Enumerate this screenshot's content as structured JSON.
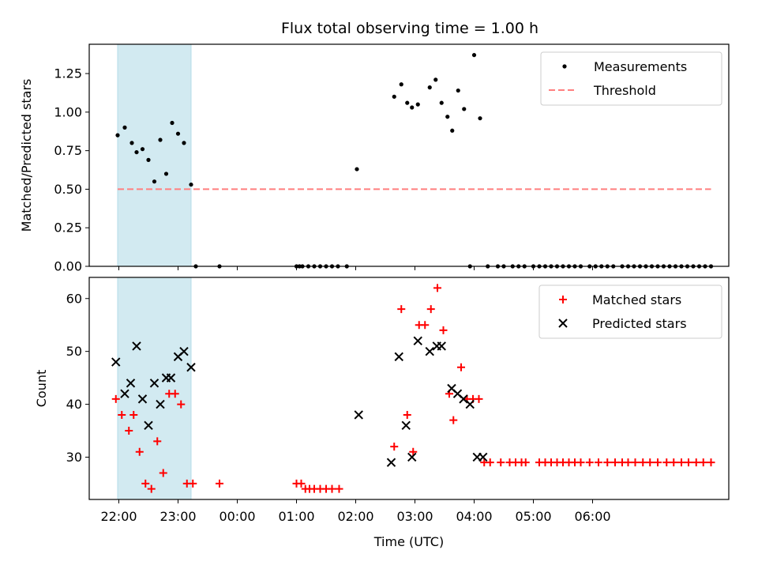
{
  "chart_data": [
    {
      "type": "scatter",
      "title": "Flux total observing time = 1.00 h",
      "xlabel": "",
      "ylabel": "Matched/Predicted stars",
      "ylim": [
        0,
        1.44
      ],
      "yticks": [
        "0.00",
        "0.25",
        "0.50",
        "0.75",
        "1.00",
        "1.25"
      ],
      "xlim": [
        -2.5,
        8.3
      ],
      "grid": false,
      "legend_position": "upper-right",
      "shaded_span": {
        "start": -2.02,
        "end": -0.78,
        "color": "#add8e6"
      },
      "series": [
        {
          "name": "Measurements",
          "kind": "scatter",
          "color": "#000000",
          "points": [
            [
              -2.02,
              0.85
            ],
            [
              -1.9,
              0.9
            ],
            [
              -1.78,
              0.8
            ],
            [
              -1.7,
              0.74
            ],
            [
              -1.6,
              0.76
            ],
            [
              -1.5,
              0.69
            ],
            [
              -1.4,
              0.55
            ],
            [
              -1.3,
              0.82
            ],
            [
              -1.2,
              0.6
            ],
            [
              -1.1,
              0.93
            ],
            [
              -1.0,
              0.86
            ],
            [
              -0.9,
              0.8
            ],
            [
              -0.78,
              0.53
            ],
            [
              -0.7,
              0.0
            ],
            [
              -0.3,
              0.0
            ],
            [
              1.0,
              0.0
            ],
            [
              1.05,
              0.0
            ],
            [
              1.1,
              0.0
            ],
            [
              1.2,
              0.0
            ],
            [
              1.3,
              0.0
            ],
            [
              1.4,
              0.0
            ],
            [
              1.5,
              0.0
            ],
            [
              1.6,
              0.0
            ],
            [
              1.7,
              0.0
            ],
            [
              1.85,
              0.0
            ],
            [
              2.02,
              0.63
            ],
            [
              2.65,
              1.1
            ],
            [
              2.77,
              1.18
            ],
            [
              2.87,
              1.06
            ],
            [
              2.95,
              1.03
            ],
            [
              3.05,
              1.05
            ],
            [
              3.25,
              1.16
            ],
            [
              3.35,
              1.21
            ],
            [
              3.45,
              1.06
            ],
            [
              3.55,
              0.97
            ],
            [
              3.63,
              0.88
            ],
            [
              3.73,
              1.14
            ],
            [
              3.83,
              1.02
            ],
            [
              3.93,
              0.0
            ],
            [
              4.0,
              1.37
            ],
            [
              4.1,
              0.96
            ],
            [
              4.23,
              0.0
            ],
            [
              4.4,
              0.0
            ],
            [
              4.5,
              0.0
            ],
            [
              4.65,
              0.0
            ],
            [
              4.75,
              0.0
            ],
            [
              4.85,
              0.0
            ],
            [
              5.0,
              0.0
            ],
            [
              5.1,
              0.0
            ],
            [
              5.2,
              0.0
            ],
            [
              5.3,
              0.0
            ],
            [
              5.4,
              0.0
            ],
            [
              5.5,
              0.0
            ],
            [
              5.6,
              0.0
            ],
            [
              5.7,
              0.0
            ],
            [
              5.8,
              0.0
            ],
            [
              5.95,
              0.0
            ],
            [
              6.05,
              0.0
            ],
            [
              6.15,
              0.0
            ],
            [
              6.25,
              0.0
            ],
            [
              6.35,
              0.0
            ],
            [
              6.5,
              0.0
            ],
            [
              6.6,
              0.0
            ],
            [
              6.7,
              0.0
            ],
            [
              6.8,
              0.0
            ],
            [
              6.9,
              0.0
            ],
            [
              7.0,
              0.0
            ],
            [
              7.1,
              0.0
            ],
            [
              7.2,
              0.0
            ],
            [
              7.3,
              0.0
            ],
            [
              7.4,
              0.0
            ],
            [
              7.5,
              0.0
            ],
            [
              7.6,
              0.0
            ],
            [
              7.7,
              0.0
            ],
            [
              7.8,
              0.0
            ],
            [
              7.9,
              0.0
            ],
            [
              8.0,
              0.0
            ]
          ]
        },
        {
          "name": "Threshold",
          "kind": "line",
          "color": "#ff7f7f",
          "dashed": true,
          "x": [
            -2.02,
            8.0
          ],
          "y": [
            0.5,
            0.5
          ]
        }
      ]
    },
    {
      "type": "scatter",
      "title": "",
      "xlabel": "Time (UTC)",
      "ylabel": "Count",
      "ylim": [
        22,
        64
      ],
      "yticks": [
        "30",
        "40",
        "50",
        "60"
      ],
      "xlim": [
        -2.5,
        8.3
      ],
      "xticks": [
        "22:00",
        "23:00",
        "00:00",
        "01:00",
        "02:00",
        "03:00",
        "04:00",
        "05:00",
        "06:00"
      ],
      "grid": false,
      "legend_position": "upper-right",
      "shaded_span": {
        "start": -2.02,
        "end": -0.78,
        "color": "#add8e6"
      },
      "series": [
        {
          "name": "Matched stars",
          "marker": "plus",
          "color": "#ff0000",
          "points": [
            [
              -2.05,
              41
            ],
            [
              -1.95,
              38
            ],
            [
              -1.83,
              35
            ],
            [
              -1.75,
              38
            ],
            [
              -1.65,
              31
            ],
            [
              -1.55,
              25
            ],
            [
              -1.45,
              24
            ],
            [
              -1.35,
              33
            ],
            [
              -1.25,
              27
            ],
            [
              -1.15,
              42
            ],
            [
              -1.05,
              42
            ],
            [
              -0.95,
              40
            ],
            [
              -0.85,
              25
            ],
            [
              -0.75,
              25
            ],
            [
              -0.3,
              25
            ],
            [
              1.0,
              25
            ],
            [
              1.08,
              25
            ],
            [
              1.15,
              24
            ],
            [
              1.22,
              24
            ],
            [
              1.3,
              24
            ],
            [
              1.4,
              24
            ],
            [
              1.5,
              24
            ],
            [
              1.6,
              24
            ],
            [
              1.72,
              24
            ],
            [
              2.65,
              32
            ],
            [
              2.77,
              58
            ],
            [
              2.87,
              38
            ],
            [
              2.97,
              31
            ],
            [
              3.07,
              55
            ],
            [
              3.17,
              55
            ],
            [
              3.27,
              58
            ],
            [
              3.38,
              62
            ],
            [
              3.48,
              54
            ],
            [
              3.58,
              42
            ],
            [
              3.65,
              37
            ],
            [
              3.78,
              47
            ],
            [
              3.88,
              41
            ],
            [
              3.98,
              41
            ],
            [
              4.08,
              41
            ],
            [
              4.17,
              29
            ],
            [
              4.27,
              29
            ],
            [
              4.45,
              29
            ],
            [
              4.6,
              29
            ],
            [
              4.7,
              29
            ],
            [
              4.8,
              29
            ],
            [
              4.87,
              29
            ],
            [
              5.1,
              29
            ],
            [
              5.2,
              29
            ],
            [
              5.3,
              29
            ],
            [
              5.4,
              29
            ],
            [
              5.5,
              29
            ],
            [
              5.6,
              29
            ],
            [
              5.7,
              29
            ],
            [
              5.8,
              29
            ],
            [
              5.95,
              29
            ],
            [
              6.1,
              29
            ],
            [
              6.25,
              29
            ],
            [
              6.38,
              29
            ],
            [
              6.5,
              29
            ],
            [
              6.6,
              29
            ],
            [
              6.72,
              29
            ],
            [
              6.85,
              29
            ],
            [
              6.97,
              29
            ],
            [
              7.1,
              29
            ],
            [
              7.25,
              29
            ],
            [
              7.37,
              29
            ],
            [
              7.5,
              29
            ],
            [
              7.62,
              29
            ],
            [
              7.75,
              29
            ],
            [
              7.87,
              29
            ],
            [
              8.0,
              29
            ]
          ]
        },
        {
          "name": "Predicted stars",
          "marker": "x",
          "color": "#000000",
          "points": [
            [
              -2.05,
              48
            ],
            [
              -1.9,
              42
            ],
            [
              -1.8,
              44
            ],
            [
              -1.7,
              51
            ],
            [
              -1.6,
              41
            ],
            [
              -1.5,
              36
            ],
            [
              -1.4,
              44
            ],
            [
              -1.3,
              40
            ],
            [
              -1.2,
              45
            ],
            [
              -1.12,
              45
            ],
            [
              -1.0,
              49
            ],
            [
              -0.9,
              50
            ],
            [
              -0.78,
              47
            ],
            [
              2.05,
              38
            ],
            [
              2.6,
              29
            ],
            [
              2.73,
              49
            ],
            [
              2.85,
              36
            ],
            [
              2.95,
              30
            ],
            [
              3.05,
              52
            ],
            [
              3.25,
              50
            ],
            [
              3.37,
              51
            ],
            [
              3.45,
              51
            ],
            [
              3.62,
              43
            ],
            [
              3.72,
              42
            ],
            [
              3.82,
              41
            ],
            [
              3.93,
              40
            ],
            [
              4.05,
              30
            ],
            [
              4.15,
              30
            ]
          ]
        }
      ]
    }
  ]
}
